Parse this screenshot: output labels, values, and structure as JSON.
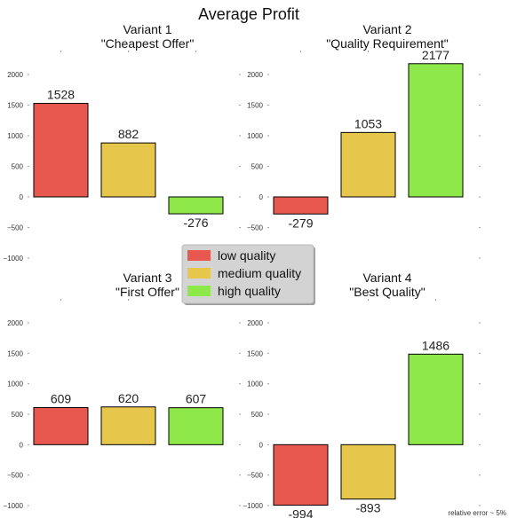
{
  "title": "Average Profit",
  "note": "relative error ~ 5%",
  "colors": {
    "low": "#e8584f",
    "medium": "#e6c64b",
    "high": "#8fe84a",
    "legend_bg": "#d3d3d3"
  },
  "legend": [
    {
      "key": "low",
      "label": "low quality"
    },
    {
      "key": "medium",
      "label": "medium quality"
    },
    {
      "key": "high",
      "label": "high quality"
    }
  ],
  "chart_data": [
    {
      "type": "bar",
      "title": "Variant 1\n\"Cheapest Offer\"",
      "categories": [
        "low quality",
        "medium quality",
        "high quality"
      ],
      "values": [
        1528,
        882,
        -276
      ],
      "ylim": [
        -1000,
        2000
      ],
      "yticks": [
        2000,
        1500,
        1000,
        500,
        0,
        -500,
        -1000
      ]
    },
    {
      "type": "bar",
      "title": "Variant 2\n\"Quality Requirement\"",
      "categories": [
        "low quality",
        "medium quality",
        "high quality"
      ],
      "values": [
        -279,
        1053,
        2177
      ],
      "ylim": [
        -1000,
        2000
      ],
      "yticks": [
        2000,
        1500,
        1000,
        500,
        0,
        -500,
        -1000
      ]
    },
    {
      "type": "bar",
      "title": "Variant 3\n\"First Offer\"",
      "categories": [
        "low quality",
        "medium quality",
        "high quality"
      ],
      "values": [
        609,
        620,
        607
      ],
      "ylim": [
        -1000,
        2000
      ],
      "yticks": [
        2000,
        1500,
        1000,
        500,
        0,
        -500,
        -1000
      ]
    },
    {
      "type": "bar",
      "title": "Variant 4\n\"Best Quality\"",
      "categories": [
        "low quality",
        "medium quality",
        "high quality"
      ],
      "values": [
        -994,
        -893,
        1486
      ],
      "ylim": [
        -1000,
        2000
      ],
      "yticks": [
        2000,
        1500,
        1000,
        500,
        0,
        -500,
        -1000
      ]
    }
  ]
}
